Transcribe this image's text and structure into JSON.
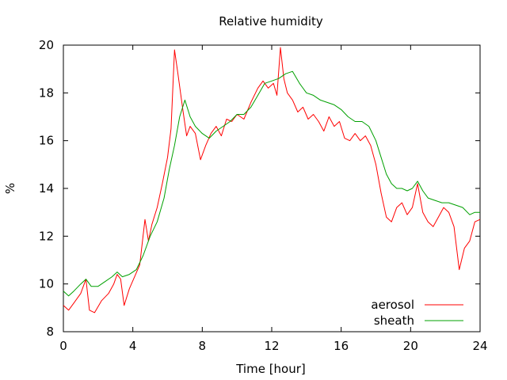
{
  "chart_data": {
    "type": "line",
    "title": "Relative humidity",
    "xlabel": "Time [hour]",
    "ylabel": "%",
    "xlim": [
      0,
      24
    ],
    "ylim": [
      8,
      20
    ],
    "xticks": [
      0,
      4,
      8,
      12,
      16,
      20,
      24
    ],
    "yticks": [
      8,
      10,
      12,
      14,
      16,
      18,
      20
    ],
    "grid": false,
    "legend_position": "bottom-right",
    "series": [
      {
        "name": "aerosol",
        "color": "#ff0000",
        "x": [
          0,
          0.3,
          0.6,
          1.0,
          1.3,
          1.5,
          1.8,
          2.2,
          2.6,
          2.9,
          3.1,
          3.3,
          3.5,
          3.8,
          4.1,
          4.4,
          4.7,
          4.9,
          5.1,
          5.4,
          5.7,
          6.0,
          6.2,
          6.4,
          6.6,
          6.9,
          7.1,
          7.3,
          7.6,
          7.9,
          8.2,
          8.5,
          8.8,
          9.1,
          9.4,
          9.7,
          10.0,
          10.4,
          10.8,
          11.2,
          11.5,
          11.8,
          12.1,
          12.3,
          12.5,
          12.7,
          12.9,
          13.2,
          13.5,
          13.8,
          14.1,
          14.4,
          14.7,
          15.0,
          15.3,
          15.6,
          15.9,
          16.2,
          16.5,
          16.8,
          17.1,
          17.4,
          17.7,
          18.0,
          18.3,
          18.6,
          18.9,
          19.2,
          19.5,
          19.8,
          20.1,
          20.4,
          20.7,
          21.0,
          21.3,
          21.6,
          21.9,
          22.2,
          22.5,
          22.8,
          23.1,
          23.4,
          23.7,
          24.0
        ],
        "y": [
          9.1,
          8.9,
          9.2,
          9.6,
          10.2,
          8.9,
          8.8,
          9.3,
          9.6,
          10.0,
          10.4,
          10.2,
          9.1,
          9.8,
          10.3,
          10.8,
          12.7,
          11.8,
          12.5,
          13.2,
          14.2,
          15.3,
          16.5,
          19.8,
          18.8,
          17.2,
          16.2,
          16.6,
          16.3,
          15.2,
          15.8,
          16.3,
          16.6,
          16.2,
          16.9,
          16.8,
          17.1,
          16.9,
          17.6,
          18.2,
          18.5,
          18.2,
          18.4,
          17.9,
          19.9,
          18.6,
          18.0,
          17.7,
          17.2,
          17.4,
          16.9,
          17.1,
          16.8,
          16.4,
          17.0,
          16.6,
          16.8,
          16.1,
          16.0,
          16.3,
          16.0,
          16.2,
          15.8,
          15.0,
          13.8,
          12.8,
          12.6,
          13.2,
          13.4,
          12.9,
          13.2,
          14.2,
          13.0,
          12.6,
          12.4,
          12.8,
          13.2,
          13.0,
          12.4,
          10.6,
          11.5,
          11.8,
          12.6,
          12.7
        ]
      },
      {
        "name": "sheath",
        "color": "#00a000",
        "x": [
          0,
          0.3,
          0.6,
          1.0,
          1.3,
          1.6,
          2.0,
          2.4,
          2.8,
          3.1,
          3.4,
          3.8,
          4.2,
          4.6,
          5.0,
          5.4,
          5.8,
          6.1,
          6.4,
          6.7,
          7.0,
          7.3,
          7.6,
          8.0,
          8.4,
          8.8,
          9.2,
          9.6,
          10.0,
          10.4,
          10.8,
          11.2,
          11.6,
          12.0,
          12.4,
          12.8,
          13.2,
          13.6,
          14.0,
          14.4,
          14.8,
          15.2,
          15.6,
          16.0,
          16.4,
          16.8,
          17.2,
          17.6,
          18.0,
          18.3,
          18.6,
          18.9,
          19.2,
          19.5,
          19.8,
          20.1,
          20.4,
          20.7,
          21.0,
          21.4,
          21.8,
          22.2,
          22.6,
          23.0,
          23.4,
          23.7,
          24.0
        ],
        "y": [
          9.7,
          9.5,
          9.7,
          10.0,
          10.2,
          9.9,
          9.9,
          10.1,
          10.3,
          10.5,
          10.3,
          10.4,
          10.6,
          11.2,
          12.0,
          12.6,
          13.6,
          14.8,
          15.8,
          17.0,
          17.7,
          17.0,
          16.6,
          16.3,
          16.1,
          16.4,
          16.6,
          16.8,
          17.1,
          17.1,
          17.4,
          17.9,
          18.4,
          18.5,
          18.6,
          18.8,
          18.9,
          18.4,
          18.0,
          17.9,
          17.7,
          17.6,
          17.5,
          17.3,
          17.0,
          16.8,
          16.8,
          16.6,
          16.0,
          15.3,
          14.6,
          14.2,
          14.0,
          14.0,
          13.9,
          14.0,
          14.3,
          13.9,
          13.6,
          13.5,
          13.4,
          13.4,
          13.3,
          13.2,
          12.9,
          13.0,
          13.0
        ]
      }
    ]
  }
}
